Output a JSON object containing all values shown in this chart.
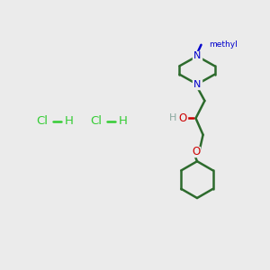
{
  "bg_color": "#ebebeb",
  "line_color": "#2d6b2d",
  "n_color": "#0000cc",
  "o_color": "#cc0000",
  "h_color": "#8aa8a0",
  "cl_color": "#33cc33",
  "line_width": 1.8,
  "fig_size": [
    3.0,
    3.0
  ],
  "dpi": 100,
  "methyl_label": "methyl",
  "N_label": "N",
  "O_label": "O",
  "H_label": "H",
  "Cl_label": "Cl"
}
